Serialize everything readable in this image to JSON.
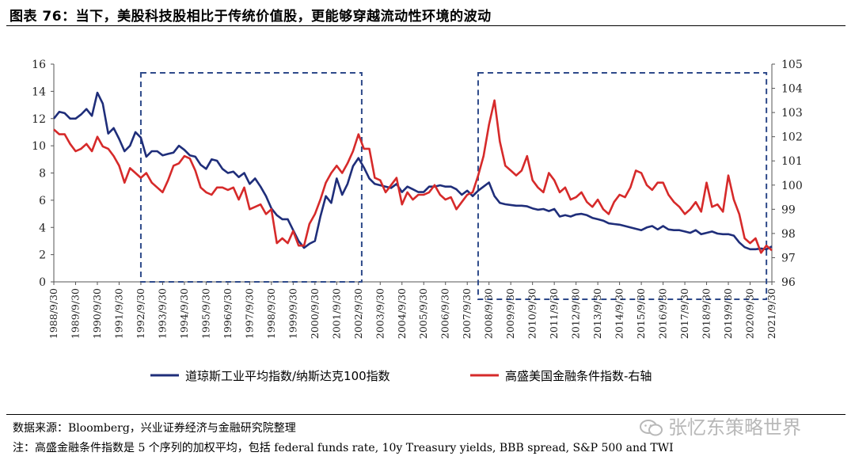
{
  "title": "图表 76：当下，美股科技股相比于传统价值股，更能够穿越流动性环境的波动",
  "source": "数据来源：Bloomberg，兴业证券经济与金融研究院整理",
  "note": "注：高盛金融条件指数是 5 个序列的加权平均，包括 federal funds rate, 10y Treasury yields, BBB spread, S&P 500 and TWI",
  "watermark": "张忆东策略世界",
  "colors": {
    "left_series": "#1f2e7a",
    "right_series": "#d62a2a",
    "box": "#2e4a8a"
  },
  "chart_data": {
    "type": "line",
    "x_ticks": [
      "1988/9/30",
      "1989/9/30",
      "1990/9/30",
      "1991/9/30",
      "1992/9/30",
      "1993/9/30",
      "1994/9/30",
      "1995/9/30",
      "1996/9/30",
      "1997/9/30",
      "1998/9/30",
      "1999/9/30",
      "2000/9/30",
      "2001/9/30",
      "2002/9/30",
      "2003/9/30",
      "2004/9/30",
      "2005/9/30",
      "2006/9/30",
      "2007/9/30",
      "2008/9/30",
      "2009/9/30",
      "2010/9/30",
      "2011/9/30",
      "2012/9/30",
      "2013/9/30",
      "2014/9/30",
      "2015/9/30",
      "2016/9/30",
      "2017/9/30",
      "2018/9/30",
      "2019/9/30",
      "2020/9/30",
      "2021/9/30"
    ],
    "xlim": [
      1988.75,
      2021.75
    ],
    "y_left": {
      "min": 0,
      "max": 16,
      "ticks": [
        "0",
        "2",
        "4",
        "6",
        "8",
        "10",
        "12",
        "14",
        "16"
      ]
    },
    "y_right": {
      "min": 96,
      "max": 105,
      "ticks": [
        "96",
        "97",
        "98",
        "99",
        "100",
        "101",
        "102",
        "103",
        "104",
        "105"
      ]
    },
    "legend_position": "bottom",
    "shaded_boxes": [
      {
        "x_start": 1992.75,
        "x_end": 2002.9,
        "style": "dashed"
      },
      {
        "x_start": 2008.25,
        "x_end": 2021.5,
        "style": "dashed"
      }
    ],
    "series": [
      {
        "name": "道琼斯工业平均指数/纳斯达克100指数",
        "axis": "left",
        "points": [
          [
            1988.75,
            12.0
          ],
          [
            1989.0,
            12.5
          ],
          [
            1989.25,
            12.4
          ],
          [
            1989.5,
            12.0
          ],
          [
            1989.75,
            12.0
          ],
          [
            1990.0,
            12.3
          ],
          [
            1990.25,
            12.7
          ],
          [
            1990.5,
            12.2
          ],
          [
            1990.75,
            13.9
          ],
          [
            1991.0,
            13.1
          ],
          [
            1991.25,
            10.9
          ],
          [
            1991.5,
            11.3
          ],
          [
            1991.75,
            10.5
          ],
          [
            1992.0,
            9.6
          ],
          [
            1992.25,
            10.0
          ],
          [
            1992.5,
            11.0
          ],
          [
            1992.75,
            10.6
          ],
          [
            1993.0,
            9.2
          ],
          [
            1993.25,
            9.6
          ],
          [
            1993.5,
            9.6
          ],
          [
            1993.75,
            9.3
          ],
          [
            1994.0,
            9.4
          ],
          [
            1994.25,
            9.5
          ],
          [
            1994.5,
            10.0
          ],
          [
            1994.75,
            9.7
          ],
          [
            1995.0,
            9.3
          ],
          [
            1995.25,
            9.2
          ],
          [
            1995.5,
            8.6
          ],
          [
            1995.75,
            8.3
          ],
          [
            1996.0,
            9.0
          ],
          [
            1996.25,
            8.9
          ],
          [
            1996.5,
            8.3
          ],
          [
            1996.75,
            8.0
          ],
          [
            1997.0,
            8.1
          ],
          [
            1997.25,
            7.7
          ],
          [
            1997.5,
            8.0
          ],
          [
            1997.75,
            7.2
          ],
          [
            1998.0,
            7.6
          ],
          [
            1998.25,
            7.0
          ],
          [
            1998.5,
            6.3
          ],
          [
            1998.75,
            5.4
          ],
          [
            1999.0,
            4.9
          ],
          [
            1999.25,
            4.6
          ],
          [
            1999.5,
            4.6
          ],
          [
            1999.75,
            3.8
          ],
          [
            2000.0,
            3.0
          ],
          [
            2000.25,
            2.5
          ],
          [
            2000.5,
            2.8
          ],
          [
            2000.75,
            3.0
          ],
          [
            2001.0,
            4.8
          ],
          [
            2001.25,
            6.3
          ],
          [
            2001.5,
            5.8
          ],
          [
            2001.75,
            7.6
          ],
          [
            2002.0,
            6.4
          ],
          [
            2002.25,
            7.2
          ],
          [
            2002.5,
            8.5
          ],
          [
            2002.75,
            9.1
          ],
          [
            2003.0,
            8.4
          ],
          [
            2003.25,
            7.6
          ],
          [
            2003.5,
            7.2
          ],
          [
            2003.75,
            7.1
          ],
          [
            2004.0,
            7.0
          ],
          [
            2004.25,
            6.9
          ],
          [
            2004.5,
            7.2
          ],
          [
            2004.75,
            6.6
          ],
          [
            2005.0,
            7.0
          ],
          [
            2005.25,
            6.8
          ],
          [
            2005.5,
            6.6
          ],
          [
            2005.75,
            6.6
          ],
          [
            2006.0,
            7.0
          ],
          [
            2006.25,
            7.0
          ],
          [
            2006.5,
            7.1
          ],
          [
            2006.75,
            7.0
          ],
          [
            2007.0,
            7.0
          ],
          [
            2007.25,
            6.8
          ],
          [
            2007.5,
            6.4
          ],
          [
            2007.75,
            6.7
          ],
          [
            2008.0,
            6.3
          ],
          [
            2008.25,
            6.7
          ],
          [
            2008.5,
            7.0
          ],
          [
            2008.75,
            7.3
          ],
          [
            2009.0,
            6.3
          ],
          [
            2009.25,
            5.8
          ],
          [
            2009.5,
            5.7
          ],
          [
            2009.75,
            5.65
          ],
          [
            2010.0,
            5.6
          ],
          [
            2010.25,
            5.6
          ],
          [
            2010.5,
            5.55
          ],
          [
            2010.75,
            5.4
          ],
          [
            2011.0,
            5.3
          ],
          [
            2011.25,
            5.35
          ],
          [
            2011.5,
            5.2
          ],
          [
            2011.75,
            5.35
          ],
          [
            2012.0,
            4.8
          ],
          [
            2012.25,
            4.9
          ],
          [
            2012.5,
            4.8
          ],
          [
            2012.75,
            4.95
          ],
          [
            2013.0,
            5.0
          ],
          [
            2013.25,
            4.9
          ],
          [
            2013.5,
            4.7
          ],
          [
            2013.75,
            4.6
          ],
          [
            2014.0,
            4.5
          ],
          [
            2014.25,
            4.3
          ],
          [
            2014.5,
            4.25
          ],
          [
            2014.75,
            4.2
          ],
          [
            2015.0,
            4.1
          ],
          [
            2015.25,
            4.0
          ],
          [
            2015.5,
            3.9
          ],
          [
            2015.75,
            3.8
          ],
          [
            2016.0,
            4.0
          ],
          [
            2016.25,
            4.1
          ],
          [
            2016.5,
            3.85
          ],
          [
            2016.75,
            4.1
          ],
          [
            2017.0,
            3.85
          ],
          [
            2017.25,
            3.8
          ],
          [
            2017.5,
            3.8
          ],
          [
            2017.75,
            3.7
          ],
          [
            2018.0,
            3.6
          ],
          [
            2018.25,
            3.8
          ],
          [
            2018.5,
            3.5
          ],
          [
            2018.75,
            3.6
          ],
          [
            2019.0,
            3.7
          ],
          [
            2019.25,
            3.55
          ],
          [
            2019.5,
            3.5
          ],
          [
            2019.75,
            3.5
          ],
          [
            2020.0,
            3.4
          ],
          [
            2020.25,
            2.9
          ],
          [
            2020.5,
            2.55
          ],
          [
            2020.75,
            2.4
          ],
          [
            2021.0,
            2.4
          ],
          [
            2021.25,
            2.45
          ],
          [
            2021.5,
            2.4
          ],
          [
            2021.75,
            2.6
          ]
        ]
      },
      {
        "name": "高盛美国金融条件指数-右轴",
        "axis": "right",
        "points": [
          [
            1988.75,
            102.3
          ],
          [
            1989.0,
            102.1
          ],
          [
            1989.25,
            102.1
          ],
          [
            1989.5,
            101.7
          ],
          [
            1989.75,
            101.4
          ],
          [
            1990.0,
            101.5
          ],
          [
            1990.25,
            101.7
          ],
          [
            1990.5,
            101.4
          ],
          [
            1990.75,
            102.0
          ],
          [
            1991.0,
            101.6
          ],
          [
            1991.25,
            101.5
          ],
          [
            1991.5,
            101.2
          ],
          [
            1991.75,
            100.8
          ],
          [
            1992.0,
            100.1
          ],
          [
            1992.25,
            100.7
          ],
          [
            1992.5,
            100.5
          ],
          [
            1992.75,
            100.3
          ],
          [
            1993.0,
            100.5
          ],
          [
            1993.25,
            100.1
          ],
          [
            1993.5,
            99.9
          ],
          [
            1993.75,
            99.7
          ],
          [
            1994.0,
            100.2
          ],
          [
            1994.25,
            100.8
          ],
          [
            1994.5,
            100.9
          ],
          [
            1994.75,
            101.2
          ],
          [
            1995.0,
            101.1
          ],
          [
            1995.25,
            100.6
          ],
          [
            1995.5,
            99.9
          ],
          [
            1995.75,
            99.7
          ],
          [
            1996.0,
            99.6
          ],
          [
            1996.25,
            99.9
          ],
          [
            1996.5,
            99.9
          ],
          [
            1996.75,
            99.8
          ],
          [
            1997.0,
            99.9
          ],
          [
            1997.25,
            99.4
          ],
          [
            1997.5,
            99.9
          ],
          [
            1997.75,
            99.0
          ],
          [
            1998.0,
            99.1
          ],
          [
            1998.25,
            99.2
          ],
          [
            1998.5,
            98.8
          ],
          [
            1998.75,
            99.0
          ],
          [
            1999.0,
            97.6
          ],
          [
            1999.25,
            97.8
          ],
          [
            1999.5,
            97.6
          ],
          [
            1999.75,
            98.1
          ],
          [
            2000.0,
            97.5
          ],
          [
            2000.25,
            97.5
          ],
          [
            2000.5,
            98.4
          ],
          [
            2000.75,
            98.8
          ],
          [
            2001.0,
            99.4
          ],
          [
            2001.25,
            100.1
          ],
          [
            2001.5,
            100.5
          ],
          [
            2001.75,
            100.8
          ],
          [
            2002.0,
            100.5
          ],
          [
            2002.25,
            100.9
          ],
          [
            2002.5,
            101.4
          ],
          [
            2002.75,
            102.1
          ],
          [
            2003.0,
            101.5
          ],
          [
            2003.25,
            101.5
          ],
          [
            2003.5,
            100.3
          ],
          [
            2003.75,
            100.2
          ],
          [
            2004.0,
            99.7
          ],
          [
            2004.25,
            100.0
          ],
          [
            2004.5,
            100.3
          ],
          [
            2004.75,
            99.2
          ],
          [
            2005.0,
            99.7
          ],
          [
            2005.25,
            99.4
          ],
          [
            2005.5,
            99.6
          ],
          [
            2005.75,
            99.6
          ],
          [
            2006.0,
            99.7
          ],
          [
            2006.25,
            100.0
          ],
          [
            2006.5,
            99.6
          ],
          [
            2006.75,
            99.4
          ],
          [
            2007.0,
            99.5
          ],
          [
            2007.25,
            99.0
          ],
          [
            2007.5,
            99.3
          ],
          [
            2007.75,
            99.6
          ],
          [
            2008.0,
            99.7
          ],
          [
            2008.25,
            100.4
          ],
          [
            2008.5,
            101.2
          ],
          [
            2008.75,
            102.5
          ],
          [
            2009.0,
            103.5
          ],
          [
            2009.25,
            101.8
          ],
          [
            2009.5,
            100.8
          ],
          [
            2009.75,
            100.6
          ],
          [
            2010.0,
            100.4
          ],
          [
            2010.25,
            100.6
          ],
          [
            2010.5,
            101.2
          ],
          [
            2010.75,
            100.2
          ],
          [
            2011.0,
            99.9
          ],
          [
            2011.25,
            99.7
          ],
          [
            2011.5,
            100.5
          ],
          [
            2011.75,
            100.2
          ],
          [
            2012.0,
            99.7
          ],
          [
            2012.25,
            99.9
          ],
          [
            2012.5,
            99.4
          ],
          [
            2012.75,
            99.5
          ],
          [
            2013.0,
            99.7
          ],
          [
            2013.25,
            99.3
          ],
          [
            2013.5,
            99.1
          ],
          [
            2013.75,
            99.4
          ],
          [
            2014.0,
            99.0
          ],
          [
            2014.25,
            98.8
          ],
          [
            2014.5,
            99.3
          ],
          [
            2014.75,
            99.6
          ],
          [
            2015.0,
            99.5
          ],
          [
            2015.25,
            99.9
          ],
          [
            2015.5,
            100.6
          ],
          [
            2015.75,
            100.5
          ],
          [
            2016.0,
            100.0
          ],
          [
            2016.25,
            99.8
          ],
          [
            2016.5,
            100.1
          ],
          [
            2016.75,
            100.1
          ],
          [
            2017.0,
            99.6
          ],
          [
            2017.25,
            99.3
          ],
          [
            2017.5,
            99.1
          ],
          [
            2017.75,
            98.8
          ],
          [
            2018.0,
            99.0
          ],
          [
            2018.25,
            99.3
          ],
          [
            2018.5,
            98.9
          ],
          [
            2018.75,
            100.1
          ],
          [
            2019.0,
            99.1
          ],
          [
            2019.25,
            99.2
          ],
          [
            2019.5,
            98.9
          ],
          [
            2019.75,
            100.4
          ],
          [
            2020.0,
            99.4
          ],
          [
            2020.25,
            98.8
          ],
          [
            2020.5,
            97.8
          ],
          [
            2020.75,
            97.6
          ],
          [
            2021.0,
            97.8
          ],
          [
            2021.25,
            97.2
          ],
          [
            2021.5,
            97.5
          ],
          [
            2021.75,
            97.3
          ]
        ]
      }
    ]
  }
}
